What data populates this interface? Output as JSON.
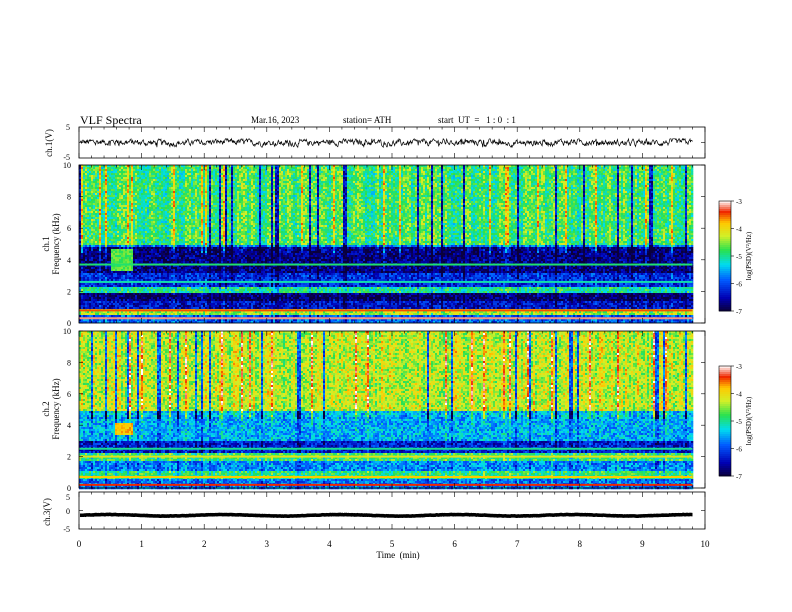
{
  "header": {
    "title": "VLF  Spectra",
    "date": "Mar.16, 2023",
    "station": "station= ATH",
    "start_ut": "start  UT  =   1 : 0  : 1"
  },
  "chart_data": [
    {
      "type": "line",
      "name": "ch1-waveform",
      "ylabel": "ch.1(V)",
      "xlim": [
        0,
        10
      ],
      "ylim": [
        -5,
        5
      ],
      "yticks": [
        "5",
        "-5"
      ],
      "x_end": 9.8,
      "baseline": 0,
      "amplitude_range": [
        -1.5,
        1.2
      ],
      "line_color": "#000000"
    },
    {
      "type": "heatmap",
      "name": "ch1-spectrogram",
      "ylabel_channel": "ch.1",
      "ylabel": "Frequency  (kHz)",
      "xlim": [
        0,
        10
      ],
      "ylim": [
        0,
        10
      ],
      "yticks": [
        "0",
        "2",
        "4",
        "6",
        "8",
        "10"
      ],
      "x_end": 9.8,
      "colorbar": {
        "label": "log(PSD)(V²/Hz)",
        "range": [
          -7,
          -3
        ],
        "ticks": [
          "-3",
          "-4",
          "-5",
          "-6",
          "-7"
        ]
      },
      "bands": [
        {
          "from": 5.0,
          "to": 10.0,
          "level": -4.8
        },
        {
          "from": 4.9,
          "to": 5.0,
          "level": -5.8
        },
        {
          "from": 3.2,
          "to": 4.9,
          "level": -6.7
        },
        {
          "from": 2.3,
          "to": 3.2,
          "level": -6.2
        },
        {
          "from": 1.9,
          "to": 2.3,
          "level": -5.0
        },
        {
          "from": 1.4,
          "to": 1.9,
          "level": -6.8
        },
        {
          "from": 1.0,
          "to": 1.4,
          "level": -6.4
        },
        {
          "from": 0.6,
          "to": 1.0,
          "level": -4.4
        },
        {
          "from": 0.0,
          "to": 0.6,
          "level": -5.9
        }
      ],
      "lines": [
        {
          "freq": 0.3,
          "level": -3.2
        },
        {
          "freq": 0.8,
          "level": -3.5
        },
        {
          "freq": 3.7,
          "level": -4.9
        },
        {
          "freq": 2.6,
          "level": -5.1
        }
      ],
      "events": [
        {
          "from": 0.5,
          "to": 0.85,
          "fmin": 3.4,
          "fmax": 4.7,
          "level": -4.7
        }
      ]
    },
    {
      "type": "heatmap",
      "name": "ch2-spectrogram",
      "ylabel_channel": "ch.2",
      "ylabel": "Frequency  (kHz)",
      "xlim": [
        0,
        10
      ],
      "ylim": [
        0,
        10
      ],
      "yticks": [
        "0",
        "2",
        "4",
        "6",
        "8",
        "10"
      ],
      "x_end": 9.8,
      "colorbar": {
        "label": "log(PSD)(V²/Hz)",
        "range": [
          -7,
          -3
        ],
        "ticks": [
          "-3",
          "-4",
          "-5",
          "-6",
          "-7"
        ]
      },
      "bands": [
        {
          "from": 5.0,
          "to": 10.0,
          "level": -4.3
        },
        {
          "from": 4.6,
          "to": 5.0,
          "level": -5.4
        },
        {
          "from": 3.0,
          "to": 4.6,
          "level": -5.5
        },
        {
          "from": 2.3,
          "to": 3.0,
          "level": -6.3
        },
        {
          "from": 1.8,
          "to": 2.3,
          "level": -4.8
        },
        {
          "from": 1.2,
          "to": 1.8,
          "level": -5.7
        },
        {
          "from": 0.6,
          "to": 1.2,
          "level": -4.9
        },
        {
          "from": 0.0,
          "to": 0.6,
          "level": -5.8
        }
      ],
      "lines": [
        {
          "freq": 0.2,
          "level": -3.4
        },
        {
          "freq": 0.7,
          "level": -3.8
        },
        {
          "freq": 2.0,
          "level": -4.1
        },
        {
          "freq": 2.5,
          "level": -5.0
        }
      ],
      "events": [
        {
          "from": 0.55,
          "to": 0.85,
          "fmin": 3.4,
          "fmax": 4.2,
          "level": -3.8
        }
      ]
    },
    {
      "type": "line",
      "name": "ch3-waveform",
      "ylabel": "ch.3(V)",
      "xlim": [
        0,
        10
      ],
      "ylim": [
        -5,
        5
      ],
      "yticks": [
        "5",
        "0",
        "-5"
      ],
      "x_end": 9.8,
      "baseline": -1.3,
      "amplitude_range": [
        -1.6,
        -1.0
      ],
      "line_color": "#000000"
    }
  ],
  "x_axis": {
    "label": "Time  (min)",
    "ticks": [
      "0",
      "1",
      "2",
      "3",
      "4",
      "5",
      "6",
      "7",
      "8",
      "9",
      "10"
    ]
  }
}
